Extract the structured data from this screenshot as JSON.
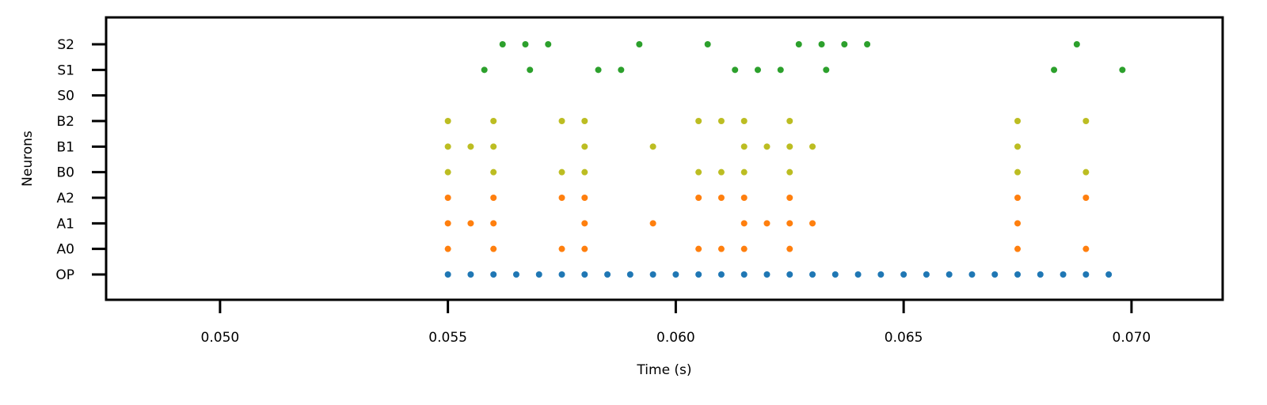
{
  "chart_data": {
    "type": "scatter",
    "title": "",
    "xlabel": "Time (s)",
    "ylabel": "Neurons",
    "xlim": [
      0.0475,
      0.072
    ],
    "x_ticks": [
      "0.050",
      "0.055",
      "0.060",
      "0.065",
      "0.070"
    ],
    "x_tick_values": [
      0.05,
      0.055,
      0.06,
      0.065,
      0.07
    ],
    "categories": [
      "OP",
      "A0",
      "A1",
      "A2",
      "B0",
      "B1",
      "B2",
      "S0",
      "S1",
      "S2"
    ],
    "grid": false,
    "legend": false,
    "series": [
      {
        "neuron": "OP",
        "color": "#1f77b4",
        "x": [
          0.055,
          0.0555,
          0.056,
          0.0565,
          0.057,
          0.0575,
          0.058,
          0.0585,
          0.059,
          0.0595,
          0.06,
          0.0605,
          0.061,
          0.0615,
          0.062,
          0.0625,
          0.063,
          0.0635,
          0.064,
          0.0645,
          0.065,
          0.0655,
          0.066,
          0.0665,
          0.067,
          0.0675,
          0.068,
          0.0685,
          0.069,
          0.0695
        ]
      },
      {
        "neuron": "A0",
        "color": "#ff7f0e",
        "x": [
          0.055,
          0.056,
          0.0575,
          0.058,
          0.0605,
          0.061,
          0.0615,
          0.0625,
          0.0675,
          0.069
        ]
      },
      {
        "neuron": "A1",
        "color": "#ff7f0e",
        "x": [
          0.055,
          0.0555,
          0.056,
          0.058,
          0.0595,
          0.0615,
          0.062,
          0.0625,
          0.063,
          0.0675
        ]
      },
      {
        "neuron": "A2",
        "color": "#ff7f0e",
        "x": [
          0.055,
          0.056,
          0.0575,
          0.058,
          0.0605,
          0.061,
          0.0615,
          0.0625,
          0.0675,
          0.069
        ]
      },
      {
        "neuron": "B0",
        "color": "#bcbd22",
        "x": [
          0.055,
          0.056,
          0.0575,
          0.058,
          0.0605,
          0.061,
          0.0615,
          0.0625,
          0.0675,
          0.069
        ]
      },
      {
        "neuron": "B1",
        "color": "#bcbd22",
        "x": [
          0.055,
          0.0555,
          0.056,
          0.058,
          0.0595,
          0.0615,
          0.062,
          0.0625,
          0.063,
          0.0675
        ]
      },
      {
        "neuron": "B2",
        "color": "#bcbd22",
        "x": [
          0.055,
          0.056,
          0.0575,
          0.058,
          0.0605,
          0.061,
          0.0615,
          0.0625,
          0.0675,
          0.069
        ]
      },
      {
        "neuron": "S0",
        "color": "#2ca02c",
        "x": []
      },
      {
        "neuron": "S1",
        "color": "#2ca02c",
        "x": [
          0.0558,
          0.0568,
          0.0583,
          0.0588,
          0.0613,
          0.0618,
          0.0623,
          0.0633,
          0.0683,
          0.0698
        ]
      },
      {
        "neuron": "S2",
        "color": "#2ca02c",
        "x": [
          0.0562,
          0.0567,
          0.0572,
          0.0592,
          0.0607,
          0.0627,
          0.0632,
          0.0637,
          0.0642,
          0.0688
        ]
      }
    ]
  }
}
